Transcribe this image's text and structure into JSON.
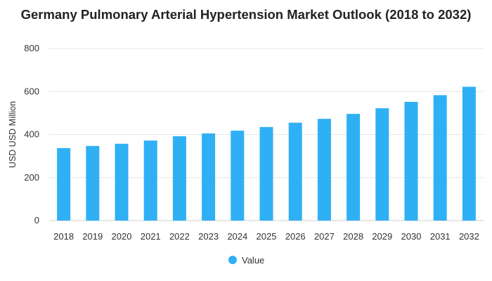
{
  "chart_data": {
    "type": "bar",
    "title": "Germany Pulmonary Arterial Hypertension Market Outlook (2018 to 2032)",
    "xlabel": "",
    "ylabel": "USD USD Million",
    "ylim": [
      0,
      800
    ],
    "yticks": [
      0,
      200,
      400,
      600,
      800
    ],
    "grid": true,
    "legend_position": "bottom",
    "categories": [
      "2018",
      "2019",
      "2020",
      "2021",
      "2022",
      "2023",
      "2024",
      "2025",
      "2026",
      "2027",
      "2028",
      "2029",
      "2030",
      "2031",
      "2032"
    ],
    "series": [
      {
        "name": "Value",
        "color": "#2fb0f5",
        "values": [
          337,
          347,
          357,
          372,
          392,
          405,
          418,
          435,
          455,
          473,
          496,
          522,
          552,
          583,
          622
        ]
      }
    ]
  }
}
